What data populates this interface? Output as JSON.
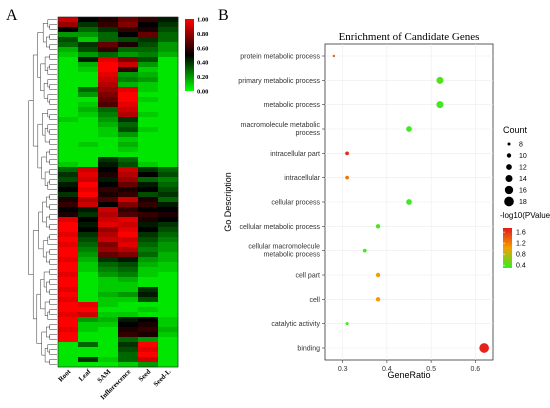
{
  "panels": {
    "a_label": "A",
    "b_label": "B"
  },
  "chart_data": [
    {
      "type": "heatmap",
      "columns": [
        "Root",
        "Leaf",
        "SAM",
        "Inflorescence",
        "Seed",
        "Seed-L"
      ],
      "colorbar": {
        "ticks": [
          "1.00",
          "0.80",
          "0.60",
          "0.40",
          "0.20",
          "0.00"
        ],
        "low_color": "#00ff00",
        "mid_color": "#000000",
        "high_color": "#ff0000"
      },
      "row_count": 70,
      "values": [
        [
          0.9,
          0.5,
          0.55,
          0.7,
          0.6,
          0.45
        ],
        [
          0.8,
          0.4,
          0.6,
          0.75,
          0.5,
          0.4
        ],
        [
          0.5,
          0.3,
          0.4,
          0.6,
          0.55,
          0.35
        ],
        [
          0.2,
          0.2,
          0.3,
          0.5,
          0.7,
          0.3
        ],
        [
          0.35,
          0.1,
          0.3,
          0.35,
          0.4,
          0.3
        ],
        [
          0.3,
          0.4,
          0.7,
          0.55,
          0.35,
          0.2
        ],
        [
          0.15,
          0.35,
          0.6,
          0.3,
          0.3,
          0.2
        ],
        [
          0.1,
          0.2,
          0.3,
          0.2,
          0.25,
          0.15
        ],
        [
          0.05,
          0.45,
          0.95,
          0.75,
          0.35,
          0.05
        ],
        [
          0.05,
          0.15,
          1.0,
          0.9,
          0.2,
          0.05
        ],
        [
          0.05,
          0.1,
          1.0,
          0.6,
          0.1,
          0.05
        ],
        [
          0.05,
          0.05,
          0.95,
          0.2,
          0.15,
          0.05
        ],
        [
          0.05,
          0.05,
          0.9,
          0.25,
          0.2,
          0.05
        ],
        [
          0.05,
          0.05,
          0.85,
          0.15,
          0.1,
          0.05
        ],
        [
          0.05,
          0.3,
          0.8,
          0.95,
          0.1,
          0.05
        ],
        [
          0.05,
          0.2,
          0.75,
          1.0,
          0.05,
          0.05
        ],
        [
          0.05,
          0.05,
          0.7,
          1.0,
          0.1,
          0.05
        ],
        [
          0.05,
          0.1,
          0.65,
          0.95,
          0.05,
          0.05
        ],
        [
          0.05,
          0.15,
          0.3,
          0.9,
          0.05,
          0.05
        ],
        [
          0.05,
          0.1,
          0.25,
          0.85,
          0.1,
          0.05
        ],
        [
          0.1,
          0.05,
          0.2,
          0.4,
          0.05,
          0.05
        ],
        [
          0.05,
          0.05,
          0.15,
          0.3,
          0.05,
          0.05
        ],
        [
          0.05,
          0.05,
          0.1,
          0.35,
          0.1,
          0.05
        ],
        [
          0.05,
          0.05,
          0.1,
          0.2,
          0.05,
          0.05
        ],
        [
          0.05,
          0.05,
          0.05,
          0.1,
          0.05,
          0.05
        ],
        [
          0.05,
          0.1,
          0.05,
          0.15,
          0.05,
          0.05
        ],
        [
          0.05,
          0.05,
          0.05,
          0.1,
          0.05,
          0.05
        ],
        [
          0.05,
          0.05,
          0.05,
          0.05,
          0.05,
          0.05
        ],
        [
          0.05,
          0.05,
          0.4,
          0.3,
          0.05,
          0.05
        ],
        [
          0.1,
          0.05,
          0.45,
          0.35,
          0.1,
          0.05
        ],
        [
          0.3,
          0.9,
          0.5,
          0.9,
          0.4,
          0.3
        ],
        [
          0.4,
          0.95,
          0.55,
          0.85,
          0.5,
          0.35
        ],
        [
          0.35,
          0.9,
          0.45,
          0.8,
          0.3,
          0.25
        ],
        [
          0.45,
          1.0,
          0.5,
          0.7,
          0.45,
          0.3
        ],
        [
          0.5,
          0.95,
          0.6,
          0.55,
          0.5,
          0.35
        ],
        [
          0.4,
          1.0,
          0.55,
          0.6,
          0.35,
          0.4
        ],
        [
          0.55,
          0.85,
          0.65,
          0.9,
          0.55,
          0.3
        ],
        [
          0.6,
          0.9,
          0.5,
          0.75,
          0.6,
          0.45
        ],
        [
          0.5,
          0.45,
          0.9,
          0.6,
          0.5,
          0.5
        ],
        [
          0.55,
          0.4,
          0.85,
          0.65,
          0.6,
          0.55
        ],
        [
          0.95,
          0.5,
          0.9,
          0.95,
          0.55,
          0.5
        ],
        [
          1.0,
          0.45,
          0.95,
          0.9,
          0.45,
          0.4
        ],
        [
          1.0,
          0.5,
          0.8,
          0.95,
          0.5,
          0.35
        ],
        [
          0.95,
          0.4,
          0.85,
          1.0,
          0.4,
          0.3
        ],
        [
          1.0,
          0.35,
          0.9,
          0.9,
          0.35,
          0.25
        ],
        [
          0.95,
          0.3,
          0.75,
          0.95,
          0.3,
          0.2
        ],
        [
          1.0,
          0.25,
          0.8,
          0.85,
          0.25,
          0.2
        ],
        [
          1.0,
          0.2,
          0.7,
          0.75,
          0.3,
          0.15
        ],
        [
          0.95,
          0.15,
          0.4,
          0.45,
          0.2,
          0.15
        ],
        [
          1.0,
          0.1,
          0.3,
          0.35,
          0.15,
          0.1
        ],
        [
          1.0,
          0.1,
          0.25,
          0.3,
          0.1,
          0.1
        ],
        [
          0.95,
          0.05,
          0.2,
          0.25,
          0.1,
          0.05
        ],
        [
          1.0,
          0.05,
          0.1,
          0.15,
          0.05,
          0.05
        ],
        [
          1.0,
          0.05,
          0.1,
          0.1,
          0.05,
          0.05
        ],
        [
          0.95,
          0.05,
          0.1,
          0.1,
          0.4,
          0.05
        ],
        [
          1.0,
          0.05,
          0.15,
          0.2,
          0.45,
          0.05
        ],
        [
          0.95,
          0.05,
          0.1,
          0.1,
          0.35,
          0.05
        ],
        [
          1.0,
          0.95,
          0.1,
          0.05,
          0.05,
          0.05
        ],
        [
          1.0,
          1.0,
          0.05,
          0.05,
          0.1,
          0.05
        ],
        [
          0.95,
          0.9,
          0.1,
          0.1,
          0.05,
          0.05
        ],
        [
          1.0,
          0.2,
          0.15,
          0.45,
          0.5,
          0.1
        ],
        [
          1.0,
          0.1,
          0.1,
          0.5,
          0.55,
          0.1
        ],
        [
          0.95,
          0.1,
          0.05,
          0.55,
          0.6,
          0.15
        ],
        [
          1.0,
          0.05,
          0.05,
          0.6,
          0.55,
          0.1
        ],
        [
          1.0,
          0.05,
          0.05,
          0.3,
          0.2,
          0.05
        ],
        [
          0.05,
          0.3,
          0.05,
          0.4,
          1.0,
          0.05
        ],
        [
          0.05,
          0.05,
          0.05,
          0.35,
          0.95,
          0.05
        ],
        [
          0.05,
          0.05,
          0.05,
          0.3,
          1.0,
          0.05
        ],
        [
          0.05,
          0.4,
          0.1,
          0.3,
          0.9,
          0.05
        ],
        [
          0.05,
          0.05,
          0.05,
          0.1,
          0.2,
          0.05
        ]
      ]
    },
    {
      "type": "scatter",
      "title": "Enrichment of Candidate Genes",
      "xlabel": "GeneRatio",
      "ylabel": "Go Description",
      "xlim": [
        0.26,
        0.64
      ],
      "xticks": [
        "0.3",
        "0.4",
        "0.5",
        "0.6"
      ],
      "points": [
        {
          "term": "protein metabolic process",
          "x": 0.28,
          "count": 7,
          "log10p": 1.4
        },
        {
          "term": "primary metabolic process",
          "x": 0.52,
          "count": 14,
          "log10p": 0.4
        },
        {
          "term": "metabolic process",
          "x": 0.52,
          "count": 14,
          "log10p": 0.35
        },
        {
          "term": "macromolecule metabolic process",
          "x": 0.45,
          "count": 12,
          "log10p": 0.35
        },
        {
          "term": "intracellular part",
          "x": 0.31,
          "count": 9,
          "log10p": 1.65
        },
        {
          "term": "intracellular",
          "x": 0.31,
          "count": 9,
          "log10p": 1.25
        },
        {
          "term": "cellular process",
          "x": 0.45,
          "count": 12,
          "log10p": 0.35
        },
        {
          "term": "cellular metabolic process",
          "x": 0.38,
          "count": 10,
          "log10p": 0.4
        },
        {
          "term": "cellular macromolecule metabolic process",
          "x": 0.35,
          "count": 9,
          "log10p": 0.35
        },
        {
          "term": "cell part",
          "x": 0.38,
          "count": 10,
          "log10p": 1.05
        },
        {
          "term": "cell",
          "x": 0.38,
          "count": 10,
          "log10p": 1.05
        },
        {
          "term": "catalytic activity",
          "x": 0.31,
          "count": 8,
          "log10p": 0.35
        },
        {
          "term": "binding",
          "x": 0.62,
          "count": 18,
          "log10p": 1.7
        }
      ],
      "legend_size": {
        "title": "Count",
        "entries": [
          "8",
          "10",
          "12",
          "14",
          "16",
          "18"
        ],
        "values": [
          8,
          10,
          12,
          14,
          16,
          18
        ]
      },
      "legend_color": {
        "title": "-log10(PValue)",
        "ticks": [
          "1.6",
          "1.2",
          "0.8",
          "0.4"
        ],
        "tick_values": [
          1.6,
          1.2,
          0.8,
          0.4
        ],
        "range": [
          0.3,
          1.75
        ],
        "low_color": "#33ee22",
        "mid_color": "#f5a000",
        "high_color": "#e41a1c"
      }
    }
  ]
}
